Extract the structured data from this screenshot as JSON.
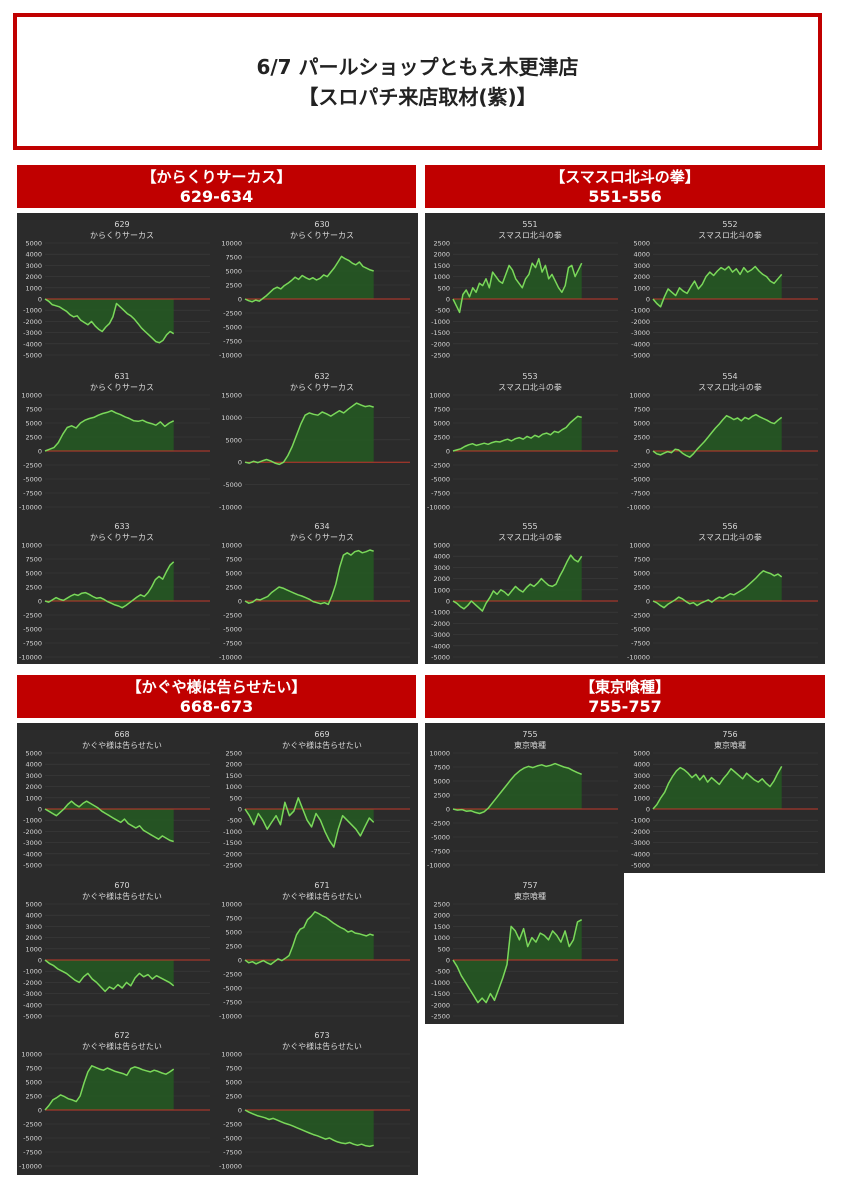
{
  "page": {
    "title_line1": "6/7 パールショップともえ木更津店",
    "title_line2": "【スロパチ来店取材(紫)】"
  },
  "colors": {
    "accent_red": "#c00000",
    "panel_bg": "#2b2b2b",
    "line": "#7ad85a",
    "fill": "#245a22",
    "zero_line": "#c0392b",
    "text": "#d8d8d8"
  },
  "sections": [
    {
      "name": "【からくりサーカス】",
      "range": "629-634"
    },
    {
      "name": "【スマスロ北斗の拳】",
      "range": "551-556"
    },
    {
      "name": "【かぐや様は告らせたい】",
      "range": "668-673"
    },
    {
      "name": "【東京喰種】",
      "range": "755-757"
    }
  ],
  "chart_data": [
    {
      "type": "area",
      "section": 0,
      "number": "629",
      "title": "からくりサーカス",
      "ylim": [
        -5000,
        5000
      ],
      "yticks": [
        5000,
        4000,
        3000,
        2000,
        1000,
        0,
        -1000,
        -2000,
        -3000,
        -4000,
        -5000
      ],
      "values": [
        0,
        -200,
        -500,
        -600,
        -700,
        -900,
        -1100,
        -1400,
        -1600,
        -1500,
        -1900,
        -2100,
        -2300,
        -2000,
        -2400,
        -2700,
        -2900,
        -2500,
        -2200,
        -1600,
        -400,
        -700,
        -1000,
        -1300,
        -1500,
        -1800,
        -2200,
        -2600,
        -2900,
        -3200,
        -3500,
        -3800,
        -3900,
        -3700,
        -3200,
        -2900,
        -3100
      ]
    },
    {
      "type": "area",
      "section": 0,
      "number": "630",
      "title": "からくりサーカス",
      "ylim": [
        -10000,
        10000
      ],
      "yticks": [
        10000,
        7500,
        5000,
        2500,
        0,
        -2500,
        -5000,
        -7500,
        -10000
      ],
      "values": [
        0,
        -300,
        -500,
        -200,
        -400,
        100,
        600,
        1200,
        1800,
        2100,
        1800,
        2400,
        2800,
        3300,
        3900,
        3500,
        4200,
        3800,
        3500,
        3800,
        3400,
        3700,
        4300,
        4000,
        4800,
        5600,
        6600,
        7600,
        7200,
        6900,
        6400,
        6100,
        6600,
        5800,
        5500,
        5200,
        5000
      ]
    },
    {
      "type": "area",
      "section": 0,
      "number": "631",
      "title": "からくりサーカス",
      "ylim": [
        -10000,
        10000
      ],
      "yticks": [
        10000,
        7500,
        5000,
        2500,
        0,
        -2500,
        -5000,
        -7500,
        -10000
      ],
      "values": [
        0,
        300,
        600,
        1500,
        3000,
        4200,
        4500,
        4100,
        5000,
        5500,
        5800,
        6000,
        6400,
        6700,
        6900,
        7200,
        6800,
        6500,
        6100,
        5800,
        5400,
        5300,
        5500,
        5100,
        4900,
        4600,
        5200,
        4400,
        5000,
        5400
      ]
    },
    {
      "type": "area",
      "section": 0,
      "number": "632",
      "title": "からくりサーカス",
      "ylim": [
        -10000,
        15000
      ],
      "yticks": [
        15000,
        10000,
        5000,
        0,
        -5000,
        -10000
      ],
      "values": [
        0,
        -200,
        200,
        -100,
        300,
        600,
        300,
        -200,
        -500,
        0,
        1500,
        3500,
        6000,
        8500,
        10500,
        11000,
        10700,
        10500,
        11200,
        10800,
        10300,
        10900,
        11500,
        11000,
        11800,
        12500,
        13200,
        12800,
        12400,
        12600,
        12300
      ]
    },
    {
      "type": "area",
      "section": 0,
      "number": "633",
      "title": "からくりサーカス",
      "ylim": [
        -10000,
        10000
      ],
      "yticks": [
        10000,
        7500,
        5000,
        2500,
        0,
        -2500,
        -5000,
        -7500,
        -10000
      ],
      "values": [
        0,
        -200,
        200,
        600,
        300,
        100,
        500,
        900,
        1200,
        1000,
        1400,
        1500,
        1200,
        800,
        500,
        600,
        300,
        -100,
        -400,
        -700,
        -900,
        -1200,
        -800,
        -300,
        200,
        700,
        1100,
        800,
        1500,
        2500,
        3800,
        4400,
        3900,
        5200,
        6400,
        7000
      ]
    },
    {
      "type": "area",
      "section": 0,
      "number": "634",
      "title": "からくりサーカス",
      "ylim": [
        -10000,
        10000
      ],
      "yticks": [
        10000,
        7500,
        5000,
        2500,
        0,
        -2500,
        -5000,
        -7500,
        -10000
      ],
      "values": [
        0,
        -400,
        -200,
        300,
        200,
        500,
        800,
        1500,
        2000,
        2500,
        2300,
        2000,
        1700,
        1400,
        1100,
        900,
        600,
        300,
        -100,
        -300,
        -500,
        -300,
        -600,
        1000,
        3000,
        6000,
        8200,
        8600,
        8200,
        8800,
        9000,
        8600,
        8800,
        9100,
        8900
      ]
    },
    {
      "type": "area",
      "section": 1,
      "number": "551",
      "title": "スマスロ北斗の拳",
      "ylim": [
        -2500,
        2500
      ],
      "yticks": [
        2500,
        2000,
        1500,
        1000,
        500,
        0,
        -500,
        -1000,
        -1500,
        -2000,
        -2500
      ],
      "values": [
        0,
        -300,
        -600,
        200,
        400,
        100,
        500,
        300,
        700,
        600,
        900,
        500,
        1200,
        1000,
        800,
        700,
        1100,
        1500,
        1300,
        900,
        700,
        500,
        900,
        1100,
        1600,
        1400,
        1800,
        1200,
        1500,
        900,
        1100,
        800,
        500,
        300,
        600,
        1400,
        1500,
        1000,
        1300,
        1600
      ]
    },
    {
      "type": "area",
      "section": 1,
      "number": "552",
      "title": "スマスロ北斗の拳",
      "ylim": [
        -5000,
        5000
      ],
      "yticks": [
        5000,
        4000,
        3000,
        2000,
        1000,
        0,
        -1000,
        -2000,
        -3000,
        -4000,
        -5000
      ],
      "values": [
        0,
        -400,
        -700,
        200,
        900,
        600,
        300,
        1000,
        700,
        500,
        1100,
        1600,
        900,
        1300,
        2000,
        2400,
        2100,
        2500,
        2800,
        2600,
        2900,
        2400,
        2700,
        2200,
        2800,
        2400,
        2600,
        2900,
        2500,
        2200,
        2000,
        1600,
        1400,
        1800,
        2200
      ]
    },
    {
      "type": "area",
      "section": 1,
      "number": "553",
      "title": "スマスロ北斗の拳",
      "ylim": [
        -10000,
        10000
      ],
      "yticks": [
        10000,
        7500,
        5000,
        2500,
        0,
        -2500,
        -5000,
        -7500,
        -10000
      ],
      "values": [
        0,
        200,
        400,
        800,
        1100,
        1300,
        1000,
        1200,
        1400,
        1200,
        1500,
        1700,
        1600,
        1900,
        2100,
        1800,
        2200,
        2400,
        2100,
        2600,
        2300,
        2800,
        2500,
        3000,
        3200,
        2900,
        3500,
        3300,
        3800,
        4200,
        5000,
        5600,
        6200,
        6000
      ]
    },
    {
      "type": "area",
      "section": 1,
      "number": "554",
      "title": "スマスロ北斗の拳",
      "ylim": [
        -10000,
        10000
      ],
      "yticks": [
        10000,
        7500,
        5000,
        2500,
        0,
        -2500,
        -5000,
        -7500,
        -10000
      ],
      "values": [
        0,
        -500,
        -700,
        -400,
        -100,
        -300,
        300,
        200,
        -400,
        -800,
        -1100,
        -500,
        300,
        1000,
        1700,
        2500,
        3300,
        4100,
        4800,
        5600,
        6300,
        6000,
        5600,
        5900,
        5400,
        6000,
        5700,
        6200,
        6500,
        6100,
        5800,
        5500,
        5100,
        4900,
        5500,
        6000
      ]
    },
    {
      "type": "area",
      "section": 1,
      "number": "555",
      "title": "スマスロ北斗の拳",
      "ylim": [
        -5000,
        5000
      ],
      "yticks": [
        5000,
        4000,
        3000,
        2000,
        1000,
        0,
        -1000,
        -2000,
        -3000,
        -4000,
        -5000
      ],
      "values": [
        0,
        -200,
        -500,
        -700,
        -400,
        0,
        -300,
        -600,
        -900,
        -200,
        300,
        900,
        600,
        1000,
        800,
        500,
        900,
        1300,
        1000,
        800,
        1200,
        1500,
        1300,
        1600,
        2000,
        1700,
        1400,
        1300,
        1500,
        2200,
        2800,
        3500,
        4100,
        3700,
        3500,
        4000
      ]
    },
    {
      "type": "area",
      "section": 1,
      "number": "556",
      "title": "スマスロ北斗の拳",
      "ylim": [
        -10000,
        10000
      ],
      "yticks": [
        10000,
        7500,
        5000,
        2500,
        0,
        -2500,
        -5000,
        -7500,
        -10000
      ],
      "values": [
        0,
        -300,
        -800,
        -1200,
        -600,
        -200,
        200,
        700,
        400,
        -100,
        -500,
        -300,
        -800,
        -400,
        -100,
        200,
        -200,
        300,
        700,
        500,
        900,
        1300,
        1100,
        1500,
        1900,
        2300,
        2900,
        3500,
        4100,
        4800,
        5400,
        5100,
        4900,
        4500,
        4800,
        4300
      ]
    },
    {
      "type": "area",
      "section": 2,
      "number": "668",
      "title": "かぐや様は告らせたい",
      "ylim": [
        -5000,
        5000
      ],
      "yticks": [
        5000,
        4000,
        3000,
        2000,
        1000,
        0,
        -1000,
        -2000,
        -3000,
        -4000,
        -5000
      ],
      "values": [
        0,
        -200,
        -400,
        -600,
        -300,
        0,
        400,
        700,
        400,
        200,
        500,
        700,
        500,
        300,
        100,
        -200,
        -400,
        -600,
        -800,
        -1000,
        -1200,
        -900,
        -1300,
        -1500,
        -1700,
        -1500,
        -1900,
        -2100,
        -2300,
        -2500,
        -2700,
        -2400,
        -2600,
        -2800,
        -2900
      ]
    },
    {
      "type": "area",
      "section": 2,
      "number": "669",
      "title": "かぐや様は告らせたい",
      "ylim": [
        -2500,
        2500
      ],
      "yticks": [
        2500,
        2000,
        1500,
        1000,
        500,
        0,
        -500,
        -1000,
        -1500,
        -2000,
        -2500
      ],
      "values": [
        0,
        -300,
        -700,
        -200,
        -500,
        -900,
        -600,
        -300,
        -700,
        300,
        -300,
        -100,
        500,
        0,
        -500,
        -800,
        -200,
        -500,
        -1000,
        -1400,
        -1700,
        -900,
        -300,
        -500,
        -700,
        -900,
        -1200,
        -800,
        -400,
        -600
      ]
    },
    {
      "type": "area",
      "section": 2,
      "number": "670",
      "title": "かぐや様は告らせたい",
      "ylim": [
        -5000,
        5000
      ],
      "yticks": [
        5000,
        4000,
        3000,
        2000,
        1000,
        0,
        -1000,
        -2000,
        -3000,
        -4000,
        -5000
      ],
      "values": [
        0,
        -300,
        -500,
        -800,
        -1000,
        -1200,
        -1500,
        -1800,
        -2000,
        -1500,
        -1200,
        -1700,
        -2000,
        -2400,
        -2800,
        -2400,
        -2600,
        -2200,
        -2500,
        -2000,
        -2300,
        -1600,
        -1200,
        -1500,
        -1300,
        -1700,
        -1400,
        -1600,
        -1800,
        -2000,
        -2300
      ]
    },
    {
      "type": "area",
      "section": 2,
      "number": "671",
      "title": "かぐや様は告らせたい",
      "ylim": [
        -10000,
        10000
      ],
      "yticks": [
        10000,
        7500,
        5000,
        2500,
        0,
        -2500,
        -5000,
        -7500,
        -10000
      ],
      "values": [
        0,
        -500,
        -300,
        -700,
        -400,
        -100,
        -500,
        -800,
        -300,
        200,
        -100,
        300,
        800,
        2500,
        4500,
        5500,
        5800,
        7200,
        7800,
        8600,
        8300,
        7900,
        7600,
        7100,
        6600,
        6200,
        5800,
        5500,
        5000,
        5200,
        4800,
        4700,
        4500,
        4300,
        4600,
        4400
      ]
    },
    {
      "type": "area",
      "section": 2,
      "number": "672",
      "title": "かぐや様は告らせたい",
      "ylim": [
        -10000,
        10000
      ],
      "yticks": [
        10000,
        7500,
        5000,
        2500,
        0,
        -2500,
        -5000,
        -7500,
        -10000
      ],
      "values": [
        0,
        800,
        1800,
        2200,
        2700,
        2400,
        2000,
        1800,
        1500,
        2500,
        4800,
        6800,
        7900,
        7600,
        7300,
        7100,
        7500,
        7200,
        6900,
        6700,
        6500,
        6200,
        7400,
        7700,
        7500,
        7200,
        7000,
        6800,
        7100,
        6900,
        6600,
        6400,
        6800,
        7300
      ]
    },
    {
      "type": "area",
      "section": 2,
      "number": "673",
      "title": "かぐや様は告らせたい",
      "ylim": [
        -10000,
        10000
      ],
      "yticks": [
        10000,
        7500,
        5000,
        2500,
        0,
        -2500,
        -5000,
        -7500,
        -10000
      ],
      "values": [
        0,
        -400,
        -700,
        -1000,
        -1200,
        -1400,
        -1700,
        -1500,
        -1800,
        -2100,
        -2400,
        -2600,
        -2900,
        -3200,
        -3500,
        -3800,
        -4100,
        -4400,
        -4600,
        -4900,
        -5200,
        -5000,
        -5400,
        -5700,
        -5900,
        -6000,
        -5800,
        -6100,
        -6300,
        -6100,
        -6400,
        -6500,
        -6300
      ]
    },
    {
      "type": "area",
      "section": 3,
      "number": "755",
      "title": "東京喰種",
      "ylim": [
        -10000,
        10000
      ],
      "yticks": [
        10000,
        7500,
        5000,
        2500,
        0,
        -2500,
        -5000,
        -7500,
        -10000
      ],
      "values": [
        0,
        -200,
        -100,
        -400,
        -300,
        -600,
        -800,
        -500,
        200,
        1200,
        2200,
        3200,
        4200,
        5200,
        6100,
        6800,
        7300,
        7600,
        7400,
        7700,
        7900,
        7600,
        7800,
        8100,
        7800,
        7500,
        7300,
        6900,
        6500,
        6200
      ]
    },
    {
      "type": "area",
      "section": 3,
      "number": "756",
      "title": "東京喰種",
      "ylim": [
        -5000,
        5000
      ],
      "yticks": [
        5000,
        4000,
        3000,
        2000,
        1000,
        0,
        -1000,
        -2000,
        -3000,
        -4000,
        -5000
      ],
      "values": [
        0,
        400,
        1000,
        1500,
        2300,
        2900,
        3400,
        3700,
        3500,
        3200,
        2800,
        3100,
        2600,
        3000,
        2400,
        2800,
        2500,
        2200,
        2700,
        3100,
        3600,
        3300,
        3000,
        2700,
        3200,
        2900,
        2600,
        2400,
        2700,
        2300,
        2000,
        2500,
        3200,
        3800
      ]
    },
    {
      "type": "area",
      "section": 3,
      "number": "757",
      "title": "東京喰種",
      "ylim": [
        -2500,
        2500
      ],
      "yticks": [
        2500,
        2000,
        1500,
        1000,
        500,
        0,
        -500,
        -1000,
        -1500,
        -2000,
        -2500
      ],
      "values": [
        0,
        -300,
        -700,
        -1000,
        -1300,
        -1600,
        -1900,
        -1700,
        -1900,
        -1500,
        -1800,
        -1300,
        -800,
        -200,
        1500,
        1300,
        900,
        1400,
        600,
        1000,
        800,
        1200,
        1100,
        900,
        1300,
        1100,
        800,
        1300,
        600,
        900,
        1700,
        1800
      ]
    }
  ]
}
